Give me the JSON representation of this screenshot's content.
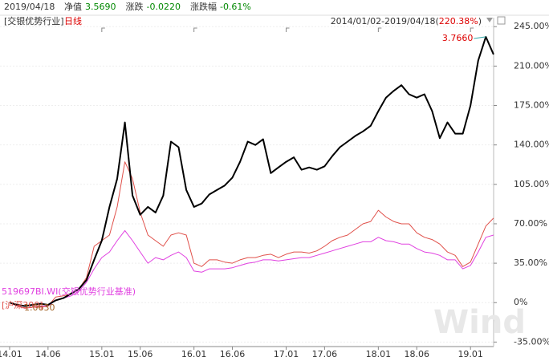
{
  "chart_data": {
    "type": "line",
    "header": {
      "date": "2019/04/18",
      "items": [
        {
          "label": "净值",
          "value": "3.5690"
        },
        {
          "label": "涨跌",
          "value": "-0.0220"
        },
        {
          "label": "涨跌幅",
          "value": "-0.61%"
        }
      ]
    },
    "title": "[交银优势行业]",
    "subtitle": "日线",
    "range_label": "2014/01/02-2019/04/18(",
    "range_return": "220.38%",
    "range_close": ")",
    "categories": [
      "14.01",
      null,
      null,
      null,
      null,
      "14.06",
      null,
      null,
      null,
      null,
      null,
      null,
      "15.01",
      null,
      null,
      null,
      null,
      "15.06",
      null,
      null,
      null,
      null,
      null,
      null,
      "16.01",
      null,
      null,
      null,
      null,
      "16.06",
      null,
      null,
      null,
      null,
      null,
      null,
      "17.01",
      null,
      null,
      null,
      null,
      "17.06",
      null,
      null,
      null,
      null,
      null,
      null,
      "18.01",
      null,
      null,
      null,
      null,
      "18.06",
      null,
      null,
      null,
      null,
      null,
      null,
      "19.01",
      null,
      null,
      null
    ],
    "series": [
      {
        "name": "519697BI.WI(交银优势行业基准)",
        "color": "#e040e0",
        "width": 1,
        "values": [
          0,
          -3,
          -5,
          -4,
          -3,
          -3,
          2,
          4,
          6,
          10,
          18,
          30,
          40,
          45,
          55,
          64,
          55,
          45,
          35,
          40,
          38,
          42,
          45,
          40,
          28,
          27,
          30,
          30,
          30,
          31,
          33,
          35,
          36,
          38,
          38,
          37,
          38,
          39,
          40,
          40,
          42,
          44,
          46,
          48,
          50,
          52,
          54,
          54,
          58,
          55,
          54,
          52,
          52,
          48,
          45,
          44,
          42,
          38,
          38,
          30,
          33,
          45,
          58,
          60
        ]
      },
      {
        "name": "[沪深300]",
        "color": "#e0504a",
        "width": 1,
        "values": [
          0,
          -3,
          -5,
          -4,
          -4,
          -3,
          5,
          6,
          8,
          12,
          22,
          50,
          55,
          60,
          85,
          125,
          110,
          80,
          60,
          55,
          50,
          60,
          62,
          60,
          35,
          32,
          38,
          38,
          36,
          35,
          38,
          40,
          40,
          42,
          43,
          40,
          43,
          45,
          45,
          44,
          46,
          50,
          55,
          58,
          60,
          65,
          70,
          72,
          82,
          76,
          72,
          70,
          70,
          62,
          58,
          56,
          52,
          45,
          42,
          32,
          36,
          52,
          68,
          75
        ]
      },
      {
        "name": "交银优势行业",
        "color": "#000000",
        "width": 2,
        "values": [
          0,
          -2,
          -3,
          -2,
          -1,
          -2,
          2,
          4,
          8,
          12,
          20,
          38,
          55,
          85,
          110,
          160,
          95,
          78,
          85,
          80,
          95,
          143,
          138,
          100,
          85,
          88,
          96,
          100,
          104,
          111,
          125,
          143,
          140,
          145,
          115,
          120,
          125,
          129,
          118,
          120,
          118,
          121,
          130,
          138,
          143,
          148,
          152,
          157,
          170,
          182,
          188,
          193,
          185,
          182,
          185,
          170,
          146,
          160,
          150,
          150,
          175,
          215,
          236,
          220.38
        ]
      }
    ],
    "ylim": [
      -39,
      253
    ],
    "yticks": [
      {
        "value": -35,
        "label": "-35.00%"
      },
      {
        "value": 0,
        "label": "0%"
      },
      {
        "value": 35,
        "label": "35.00%"
      },
      {
        "value": 70,
        "label": "70.00%"
      },
      {
        "value": 105,
        "label": "105.00%"
      },
      {
        "value": 140,
        "label": "140.00%"
      },
      {
        "value": 175,
        "label": "175.00%"
      },
      {
        "value": 210,
        "label": "210.00%"
      },
      {
        "value": 245,
        "label": "245.00%"
      }
    ],
    "grid": true,
    "peak_label": "3.7660",
    "start_label": "1.0630",
    "watermark": "Wind"
  }
}
